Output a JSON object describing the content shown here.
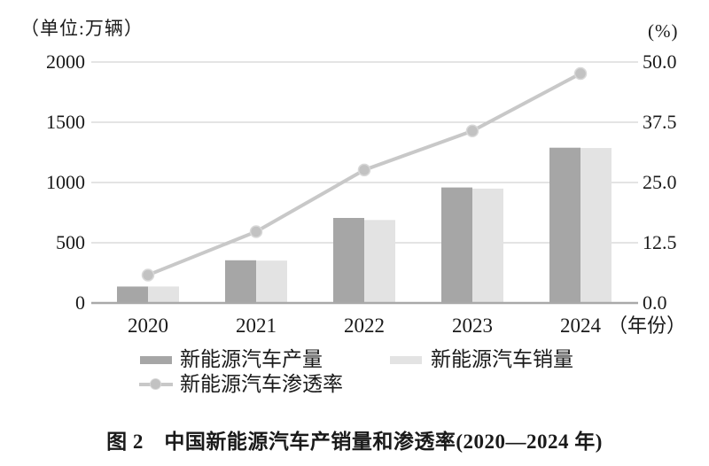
{
  "caption": "图 2　中国新能源汽车产销量和渗透率(2020—2024 年)",
  "chart_data": {
    "type": "bar",
    "subtype": "grouped-bars-with-line-overlay",
    "title": "中国新能源汽车产销量和渗透率(2020—2024 年)",
    "categories": [
      "2020",
      "2021",
      "2022",
      "2023",
      "2024"
    ],
    "series": [
      {
        "name": "新能源汽车产量",
        "type": "bar",
        "axis": "left",
        "color": "#a6a6a6",
        "values": [
          136.6,
          354.5,
          705.8,
          958.7,
          1288.8
        ]
      },
      {
        "name": "新能源汽车销量",
        "type": "bar",
        "axis": "left",
        "color": "#e3e3e3",
        "values": [
          136.7,
          352.1,
          688.7,
          949.5,
          1286.6
        ]
      },
      {
        "name": "新能源汽车渗透率",
        "type": "line",
        "axis": "right",
        "color": "#c8c8c8",
        "marker_color": "#c2c2c2",
        "marker_stroke": "#d8d8d8",
        "values": [
          5.8,
          14.8,
          27.6,
          35.7,
          47.6
        ]
      }
    ],
    "left_axis": {
      "unit_label": "（单位:万辆）",
      "min": 0,
      "max": 2000,
      "tick_values": [
        2000,
        1500,
        1000,
        500,
        0
      ],
      "tick_labels": [
        "2000",
        "1500",
        "1000",
        "500",
        "0"
      ]
    },
    "right_axis": {
      "unit_label": "(%)",
      "min": 0,
      "max": 50,
      "tick_values": [
        50,
        37.5,
        25,
        12.5,
        0
      ],
      "tick_labels": [
        "50.0",
        "37.5",
        "25.0",
        "12.5",
        "0.0"
      ]
    },
    "x_axis": {
      "suffix_label": "（年份）"
    },
    "legend": {
      "rows": [
        [
          {
            "series": 0,
            "label": "新能源汽车产量"
          },
          {
            "series": 1,
            "label": "新能源汽车销量"
          }
        ],
        [
          {
            "series": 2,
            "label": "新能源汽车渗透率"
          }
        ]
      ]
    },
    "grid": true,
    "colors": {
      "grid": "#d4d4d4",
      "axis": "#a9a9a9",
      "text": "#1a1a1a"
    }
  }
}
